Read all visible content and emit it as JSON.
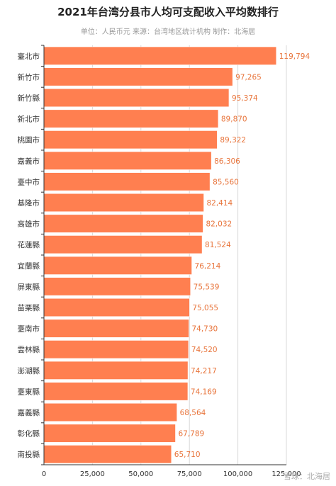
{
  "chart_data": {
    "type": "bar",
    "orientation": "horizontal",
    "title": "2021年台湾分县市人均可支配收入平均数排行",
    "subtitle": "单位：人民币元 来源：台湾地区统计机构 制作：北海居",
    "categories": [
      "臺北市",
      "新竹市",
      "新竹縣",
      "新北市",
      "桃園市",
      "嘉義市",
      "臺中市",
      "基隆市",
      "高雄市",
      "花蓮縣",
      "宜蘭縣",
      "屏東縣",
      "苗栗縣",
      "臺南市",
      "雲林縣",
      "澎湖縣",
      "臺東縣",
      "嘉義縣",
      "彰化縣",
      "南投縣"
    ],
    "values": [
      119794,
      97265,
      95374,
      89870,
      89322,
      86306,
      85560,
      82414,
      82032,
      81524,
      76214,
      75539,
      75055,
      74730,
      74520,
      74217,
      74169,
      68564,
      67789,
      65710
    ],
    "value_labels": [
      "119,794",
      "97,265",
      "95,374",
      "89,870",
      "89,322",
      "86,306",
      "85,560",
      "82,414",
      "82,032",
      "81,524",
      "76,214",
      "75,539",
      "75,055",
      "74,730",
      "74,520",
      "74,217",
      "74,169",
      "68,564",
      "67,789",
      "65,710"
    ],
    "xlim": [
      0,
      125000
    ],
    "x_ticks": [
      "0",
      "25,000",
      "50,000",
      "75,000",
      "100,000",
      "125,000"
    ],
    "grid": true,
    "colors": {
      "bar": "#FF7F50",
      "bar_stroke": "#ffffff",
      "value_label": "#E8743B",
      "grid": "#d9d9d9",
      "axis": "#333333"
    }
  },
  "watermark": "雪球：北海居"
}
